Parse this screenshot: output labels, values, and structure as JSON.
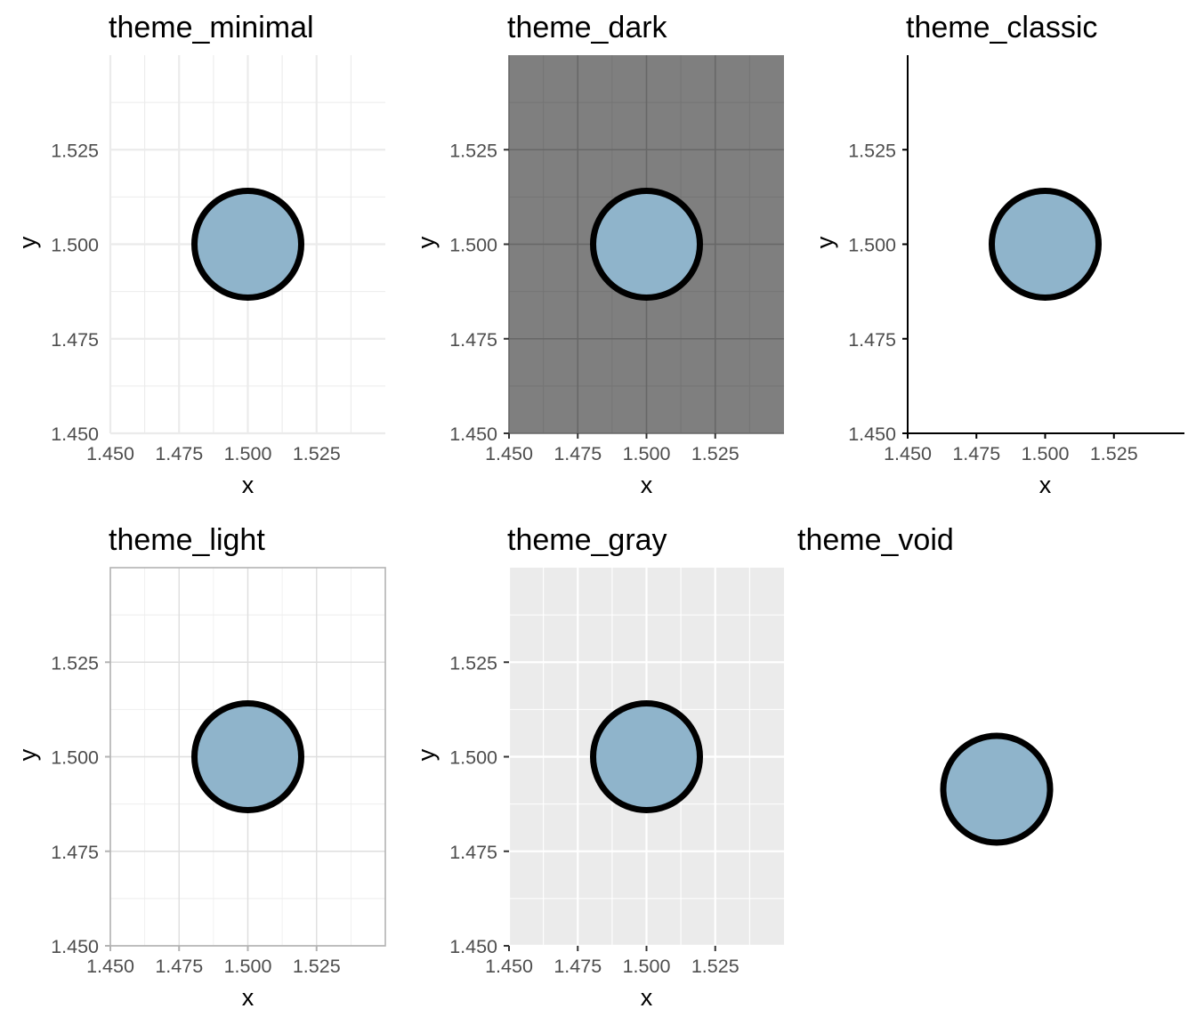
{
  "chart_data": [
    {
      "type": "scatter",
      "title": "theme_minimal",
      "theme": "minimal",
      "xlabel": "x",
      "ylabel": "y",
      "xlim": [
        1.45,
        1.55
      ],
      "ylim": [
        1.45,
        1.55
      ],
      "xticks": [
        "1.450",
        "1.475",
        "1.500",
        "1.525"
      ],
      "yticks": [
        "1.450",
        "1.475",
        "1.500",
        "1.525"
      ],
      "grid": true,
      "points": [
        {
          "x": 1.5,
          "y": 1.5
        }
      ]
    },
    {
      "type": "scatter",
      "title": "theme_dark",
      "theme": "dark",
      "xlabel": "x",
      "ylabel": "y",
      "xlim": [
        1.45,
        1.55
      ],
      "ylim": [
        1.45,
        1.55
      ],
      "xticks": [
        "1.450",
        "1.475",
        "1.500",
        "1.525"
      ],
      "yticks": [
        "1.450",
        "1.475",
        "1.500",
        "1.525"
      ],
      "grid": true,
      "points": [
        {
          "x": 1.5,
          "y": 1.5
        }
      ]
    },
    {
      "type": "scatter",
      "title": "theme_classic",
      "theme": "classic",
      "xlabel": "x",
      "ylabel": "y",
      "xlim": [
        1.45,
        1.55
      ],
      "ylim": [
        1.45,
        1.55
      ],
      "xticks": [
        "1.450",
        "1.475",
        "1.500",
        "1.525"
      ],
      "yticks": [
        "1.450",
        "1.475",
        "1.500",
        "1.525"
      ],
      "grid": false,
      "points": [
        {
          "x": 1.5,
          "y": 1.5
        }
      ]
    },
    {
      "type": "scatter",
      "title": "theme_light",
      "theme": "light",
      "xlabel": "x",
      "ylabel": "y",
      "xlim": [
        1.45,
        1.55
      ],
      "ylim": [
        1.45,
        1.55
      ],
      "xticks": [
        "1.450",
        "1.475",
        "1.500",
        "1.525"
      ],
      "yticks": [
        "1.450",
        "1.475",
        "1.500",
        "1.525"
      ],
      "grid": true,
      "points": [
        {
          "x": 1.5,
          "y": 1.5
        }
      ]
    },
    {
      "type": "scatter",
      "title": "theme_gray",
      "theme": "gray",
      "xlabel": "x",
      "ylabel": "y",
      "xlim": [
        1.45,
        1.55
      ],
      "ylim": [
        1.45,
        1.55
      ],
      "xticks": [
        "1.450",
        "1.475",
        "1.500",
        "1.525"
      ],
      "yticks": [
        "1.450",
        "1.475",
        "1.500",
        "1.525"
      ],
      "grid": true,
      "points": [
        {
          "x": 1.5,
          "y": 1.5
        }
      ]
    },
    {
      "type": "scatter",
      "title": "theme_void",
      "theme": "void",
      "xlabel": "",
      "ylabel": "",
      "xlim": [
        1.45,
        1.55
      ],
      "ylim": [
        1.45,
        1.55
      ],
      "xticks": [],
      "yticks": [],
      "grid": false,
      "points": [
        {
          "x": 1.5,
          "y": 1.5
        }
      ]
    }
  ],
  "colors": {
    "point_fill": "#8fb4cb",
    "point_stroke": "#000000",
    "dark_panel": "#7f7f7f",
    "gray_panel": "#ebebeb"
  }
}
